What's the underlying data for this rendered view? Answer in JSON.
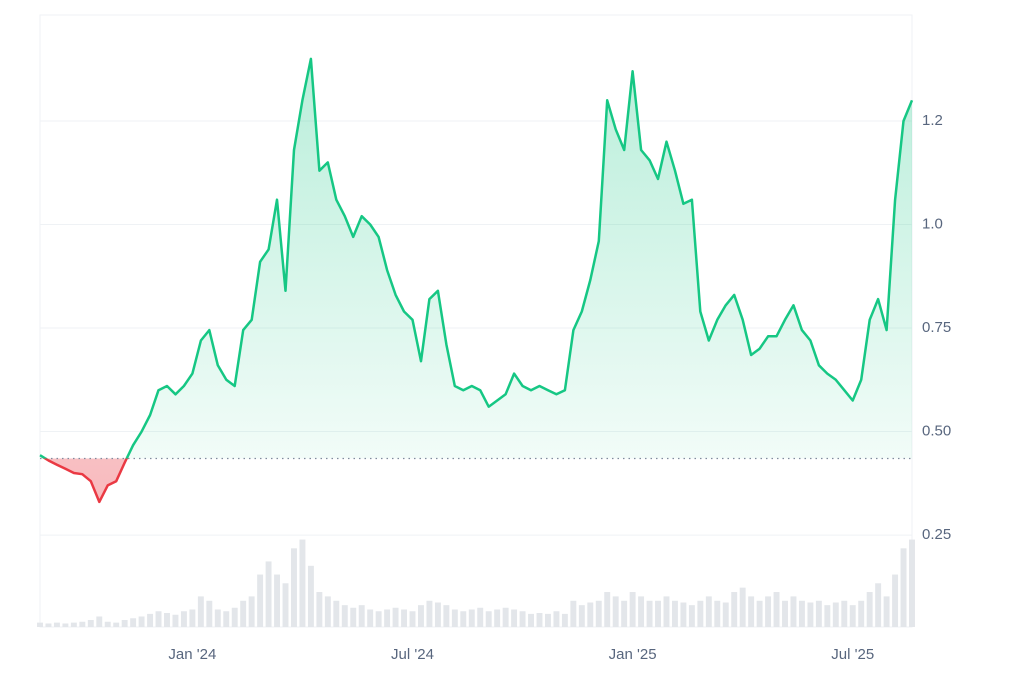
{
  "chart_data": {
    "type": "line",
    "categories": [
      null,
      null,
      null,
      null,
      null,
      null,
      null,
      null,
      null,
      null,
      null,
      null,
      null,
      null,
      null,
      null,
      null,
      null,
      "Jan '24",
      null,
      null,
      null,
      null,
      null,
      null,
      null,
      null,
      null,
      null,
      null,
      null,
      null,
      null,
      null,
      null,
      null,
      null,
      null,
      null,
      null,
      null,
      null,
      null,
      null,
      "Jul '24",
      null,
      null,
      null,
      null,
      null,
      null,
      null,
      null,
      null,
      null,
      null,
      null,
      null,
      null,
      null,
      null,
      null,
      null,
      null,
      null,
      null,
      null,
      null,
      null,
      null,
      "Jan '25",
      null,
      null,
      null,
      null,
      null,
      null,
      null,
      null,
      null,
      null,
      null,
      null,
      null,
      null,
      null,
      null,
      null,
      null,
      null,
      null,
      null,
      null,
      null,
      null,
      null,
      "Jul '25",
      null,
      null,
      null,
      null,
      null,
      null,
      null
    ],
    "series": [
      {
        "color": "#16c784",
        "below_color": "#ea3943",
        "values": [
          0.443,
          0.43,
          0.42,
          0.41,
          0.4,
          0.397,
          0.38,
          0.33,
          0.37,
          0.38,
          0.425,
          0.467,
          0.5,
          0.54,
          0.6,
          0.61,
          0.59,
          0.61,
          0.64,
          0.72,
          0.745,
          0.66,
          0.625,
          0.61,
          0.745,
          0.77,
          0.91,
          0.94,
          1.06,
          0.84,
          1.18,
          1.3,
          1.4,
          1.13,
          1.15,
          1.06,
          1.02,
          0.97,
          1.02,
          1.0,
          0.97,
          0.89,
          0.83,
          0.79,
          0.77,
          0.67,
          0.82,
          0.84,
          0.71,
          0.61,
          0.6,
          0.61,
          0.6,
          0.56,
          0.575,
          0.59,
          0.64,
          0.61,
          0.6,
          0.61,
          0.6,
          0.59,
          0.6,
          0.745,
          0.79,
          0.866,
          0.96,
          1.3,
          1.23,
          1.18,
          1.37,
          1.18,
          1.155,
          1.11,
          1.2,
          1.13,
          1.05,
          1.06,
          0.79,
          0.72,
          0.77,
          0.805,
          0.83,
          0.77,
          0.685,
          0.7,
          0.73,
          0.73,
          0.77,
          0.805,
          0.745,
          0.72,
          0.66,
          0.64,
          0.625,
          0.6,
          0.575,
          0.625,
          0.77,
          0.82,
          0.745,
          1.06,
          1.25,
          1.3
        ]
      },
      {
        "axis": "y2",
        "color": "#e3e6ea",
        "values": [
          0.05,
          0.04,
          0.05,
          0.04,
          0.05,
          0.06,
          0.08,
          0.12,
          0.06,
          0.05,
          0.08,
          0.1,
          0.12,
          0.15,
          0.18,
          0.16,
          0.14,
          0.18,
          0.2,
          0.35,
          0.3,
          0.2,
          0.18,
          0.22,
          0.3,
          0.35,
          0.6,
          0.75,
          0.6,
          0.5,
          0.9,
          1.0,
          0.7,
          0.4,
          0.35,
          0.3,
          0.25,
          0.22,
          0.25,
          0.2,
          0.18,
          0.2,
          0.22,
          0.2,
          0.18,
          0.25,
          0.3,
          0.28,
          0.25,
          0.2,
          0.18,
          0.2,
          0.22,
          0.18,
          0.2,
          0.22,
          0.2,
          0.18,
          0.15,
          0.16,
          0.15,
          0.18,
          0.15,
          0.3,
          0.25,
          0.28,
          0.3,
          0.4,
          0.35,
          0.3,
          0.4,
          0.35,
          0.3,
          0.3,
          0.35,
          0.3,
          0.28,
          0.25,
          0.3,
          0.35,
          0.3,
          0.28,
          0.4,
          0.45,
          0.35,
          0.3,
          0.35,
          0.4,
          0.3,
          0.35,
          0.3,
          0.28,
          0.3,
          0.25,
          0.28,
          0.3,
          0.25,
          0.3,
          0.4,
          0.5,
          0.35,
          0.6,
          0.9,
          1.0
        ]
      }
    ],
    "baseline": 0.435,
    "ylim": [
      0.028,
      1.506
    ],
    "yticks": [
      {
        "value": 0.25,
        "label": "0.25"
      },
      {
        "value": 0.5,
        "label": "0.50"
      },
      {
        "value": 0.75,
        "label": "0.75"
      },
      {
        "value": 1.0,
        "label": "1.0"
      },
      {
        "value": 1.25,
        "label": "1.2"
      }
    ],
    "y2lim": [
      0,
      7
    ],
    "grid": true
  }
}
